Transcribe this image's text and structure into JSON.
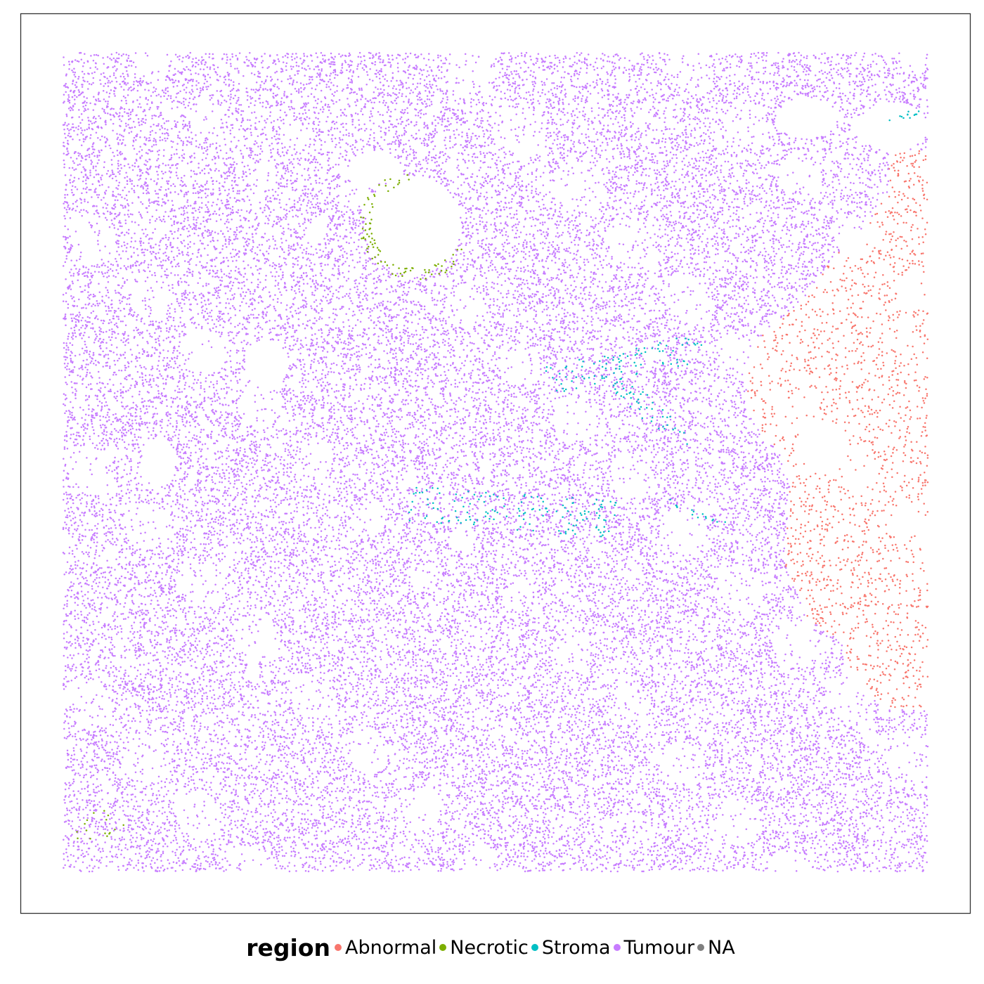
{
  "chart_data": {
    "type": "scatter",
    "title": "",
    "xlabel": "",
    "ylabel": "",
    "xlim": [
      0,
      1000
    ],
    "ylim": [
      0,
      1000
    ],
    "grid": false,
    "axes_visible": false,
    "legend": {
      "title": "region",
      "position": "bottom",
      "entries": [
        {
          "name": "Abnormal",
          "color": "#F8766D"
        },
        {
          "name": "Necrotic",
          "color": "#7CAE00"
        },
        {
          "name": "Stroma",
          "color": "#00BFC4"
        },
        {
          "name": "Tumour",
          "color": "#C77CFF"
        },
        {
          "name": "NA",
          "color": "#7F7F7F"
        }
      ]
    },
    "background_category": "Tumour",
    "regions": [
      {
        "category": "Abnormal",
        "shape": "polygon",
        "density": 0.0055,
        "polygon": [
          [
            955,
            880
          ],
          [
            1000,
            880
          ],
          [
            1000,
            200
          ],
          [
            950,
            200
          ],
          [
            910,
            235
          ],
          [
            900,
            280
          ],
          [
            860,
            310
          ],
          [
            835,
            375
          ],
          [
            840,
            470
          ],
          [
            830,
            510
          ],
          [
            790,
            560
          ],
          [
            790,
            620
          ],
          [
            810,
            660
          ],
          [
            860,
            700
          ],
          [
            890,
            750
          ],
          [
            930,
            790
          ],
          [
            955,
            830
          ]
        ]
      },
      {
        "category": "Necrotic",
        "shape": "ring",
        "cx": 410,
        "cy": 790,
        "r": 60,
        "width": 14,
        "arc": [
          100,
          330
        ],
        "count": 90
      },
      {
        "category": "Necrotic",
        "shape": "blob",
        "cx": 42,
        "cy": 55,
        "rx": 30,
        "ry": 20,
        "count": 16
      },
      {
        "category": "Stroma",
        "shape": "band",
        "from": [
          400,
          450
        ],
        "to": [
          640,
          430
        ],
        "width": 45,
        "count": 140
      },
      {
        "category": "Stroma",
        "shape": "band",
        "from": [
          560,
          600
        ],
        "to": [
          740,
          640
        ],
        "width": 35,
        "count": 90
      },
      {
        "category": "Stroma",
        "shape": "band",
        "from": [
          640,
          600
        ],
        "to": [
          720,
          520
        ],
        "width": 25,
        "count": 45
      },
      {
        "category": "Stroma",
        "shape": "band",
        "from": [
          945,
          920
        ],
        "to": [
          990,
          925
        ],
        "width": 10,
        "count": 12
      },
      {
        "category": "Stroma",
        "shape": "band",
        "from": [
          700,
          450
        ],
        "to": [
          770,
          420
        ],
        "width": 10,
        "count": 15
      }
    ],
    "holes": [
      {
        "cx": 405,
        "cy": 790,
        "rx": 55,
        "ry": 60
      },
      {
        "cx": 860,
        "cy": 920,
        "rx": 35,
        "ry": 25
      },
      {
        "cx": 235,
        "cy": 620,
        "rx": 25,
        "ry": 30
      },
      {
        "cx": 960,
        "cy": 910,
        "rx": 40,
        "ry": 30
      },
      {
        "cx": 880,
        "cy": 520,
        "rx": 30,
        "ry": 30
      },
      {
        "cx": 110,
        "cy": 500,
        "rx": 20,
        "ry": 30
      },
      {
        "cx": 360,
        "cy": 860,
        "rx": 30,
        "ry": 20
      }
    ],
    "point_count_background": 42000
  }
}
